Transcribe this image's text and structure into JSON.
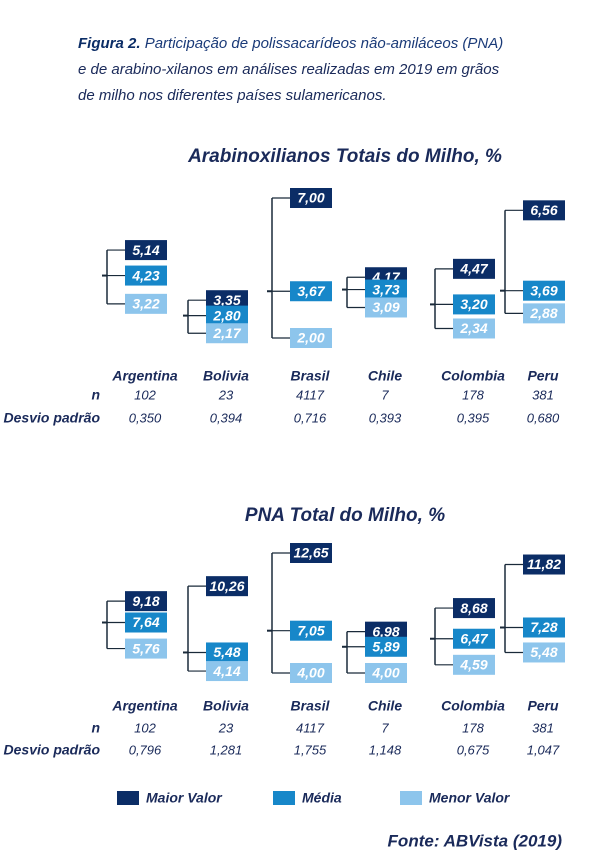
{
  "caption": {
    "label": "Figura 2.",
    "text": [
      "Participação de polissacarídeos não-amiláceos (PNA)",
      "e de arabino-xilanos em análises realizadas em 2019 em grãos",
      "de milho nos diferentes países sulamericanos."
    ]
  },
  "chart_data": [
    {
      "type": "range",
      "title": "Arabinoxilianos Totais do Milho, %",
      "categories": [
        "Argentina",
        "Bolivia",
        "Brasil",
        "Chile",
        "Colombia",
        "Peru"
      ],
      "series": [
        {
          "name": "Maior Valor",
          "color": "#0b2d66",
          "values": [
            5.14,
            3.35,
            7.0,
            4.17,
            4.47,
            6.56
          ],
          "value_labels": [
            "5,14",
            "3,35",
            "7,00",
            "4,17",
            "4,47",
            "6,56"
          ]
        },
        {
          "name": "Média",
          "color": "#1787c9",
          "values": [
            4.23,
            2.8,
            3.67,
            3.73,
            3.2,
            3.69
          ],
          "value_labels": [
            "4,23",
            "2,80",
            "3,67",
            "3,73",
            "3,20",
            "3,69"
          ]
        },
        {
          "name": "Menor Valor",
          "color": "#8dc5ec",
          "values": [
            3.22,
            2.17,
            2.0,
            3.09,
            2.34,
            2.88
          ],
          "value_labels": [
            "3,22",
            "2,17",
            "2,00",
            "3,09",
            "2,34",
            "2,88"
          ]
        }
      ],
      "table": {
        "labels": [
          "n",
          "Desvio padrão"
        ],
        "rows": [
          [
            "102",
            "23",
            "4117",
            "7",
            "178",
            "381"
          ],
          [
            "0,350",
            "0,394",
            "0,716",
            "0,393",
            "0,395",
            "0,680"
          ]
        ]
      }
    },
    {
      "type": "range",
      "title": "PNA Total do Milho, %",
      "categories": [
        "Argentina",
        "Bolivia",
        "Brasil",
        "Chile",
        "Colombia",
        "Peru"
      ],
      "series": [
        {
          "name": "Maior Valor",
          "color": "#0b2d66",
          "values": [
            9.18,
            10.26,
            12.65,
            6.98,
            8.68,
            11.82
          ],
          "value_labels": [
            "9,18",
            "10,26",
            "12,65",
            "6,98",
            "8,68",
            "11,82"
          ]
        },
        {
          "name": "Média",
          "color": "#1787c9",
          "values": [
            7.64,
            5.48,
            7.05,
            5.89,
            6.47,
            7.28
          ],
          "value_labels": [
            "7,64",
            "5,48",
            "7,05",
            "5,89",
            "6,47",
            "7,28"
          ]
        },
        {
          "name": "Menor Valor",
          "color": "#8dc5ec",
          "values": [
            5.76,
            4.14,
            4.0,
            4.0,
            4.59,
            5.48
          ],
          "value_labels": [
            "5,76",
            "4,14",
            "4,00",
            "4,00",
            "4,59",
            "5,48"
          ]
        }
      ],
      "table": {
        "labels": [
          "n",
          "Desvio padrão"
        ],
        "rows": [
          [
            "102",
            "23",
            "4117",
            "7",
            "178",
            "381"
          ],
          [
            "0,796",
            "1,281",
            "1,755",
            "1,148",
            "0,675",
            "1,047"
          ]
        ]
      }
    }
  ],
  "source": "Fonte: ABVista (2019)"
}
